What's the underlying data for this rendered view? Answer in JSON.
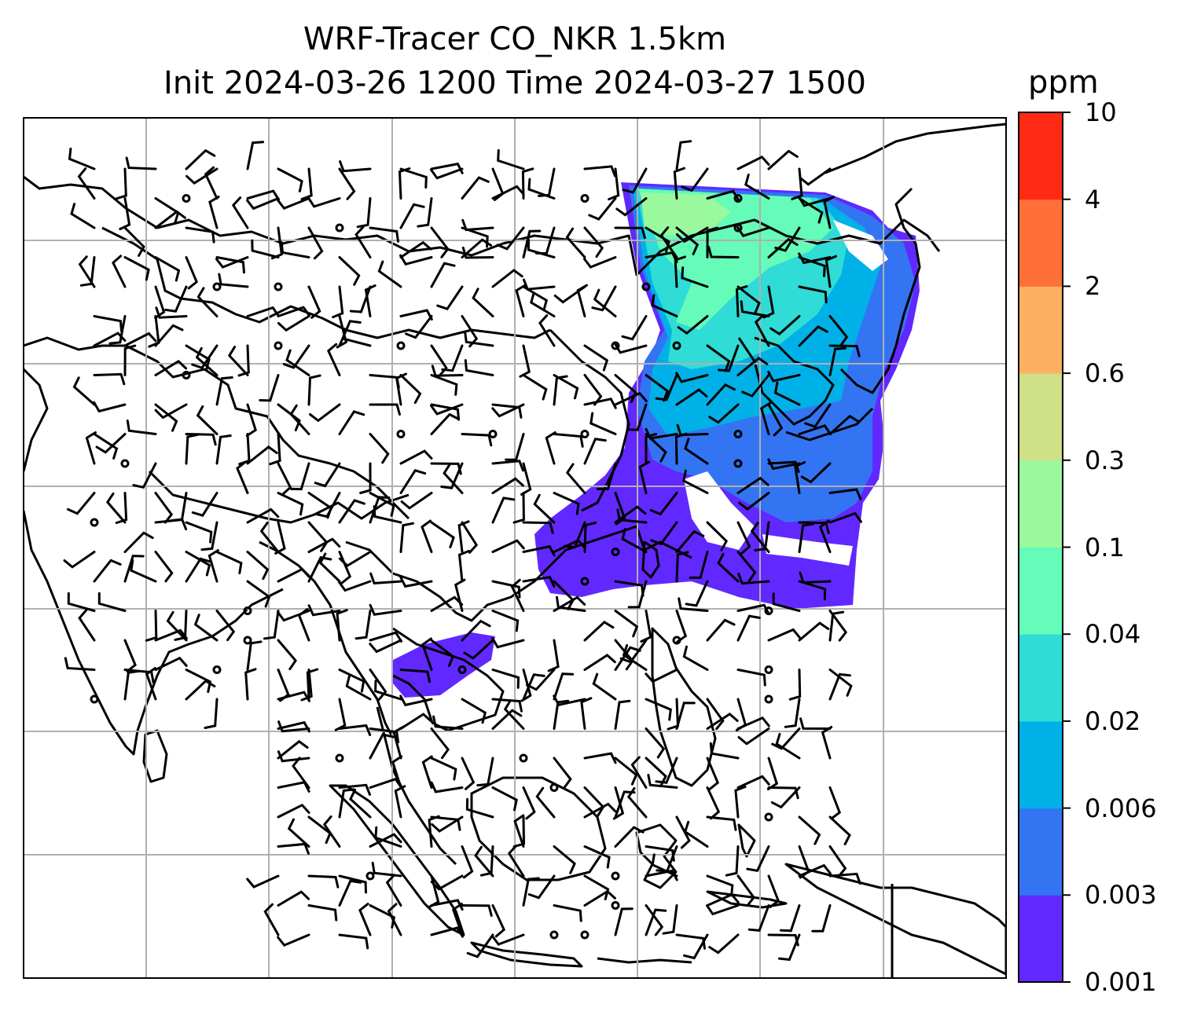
{
  "title": {
    "line1": "WRF-Tracer CO_NKR 1.5km",
    "line2": "Init 2024-03-26 1200 Time 2024-03-27 1500"
  },
  "colorbar": {
    "unit": "ppm",
    "levels": [
      "0.001",
      "0.003",
      "0.006",
      "0.02",
      "0.04",
      "0.1",
      "0.3",
      "0.6",
      "2",
      "4",
      "10"
    ],
    "colors": [
      "#6128ff",
      "#3374f2",
      "#00b1e8",
      "#2fdcd6",
      "#65fbb9",
      "#9af99d",
      "#cfe086",
      "#feb062",
      "#ff7038",
      "#ff2a14"
    ]
  },
  "map": {
    "graticule": "on",
    "wind_barbs": "on",
    "plume_colors": [
      "#6128ff",
      "#3374f2",
      "#00b1e8",
      "#2fdcd6",
      "#65fbb9",
      "#9af99d"
    ]
  }
}
